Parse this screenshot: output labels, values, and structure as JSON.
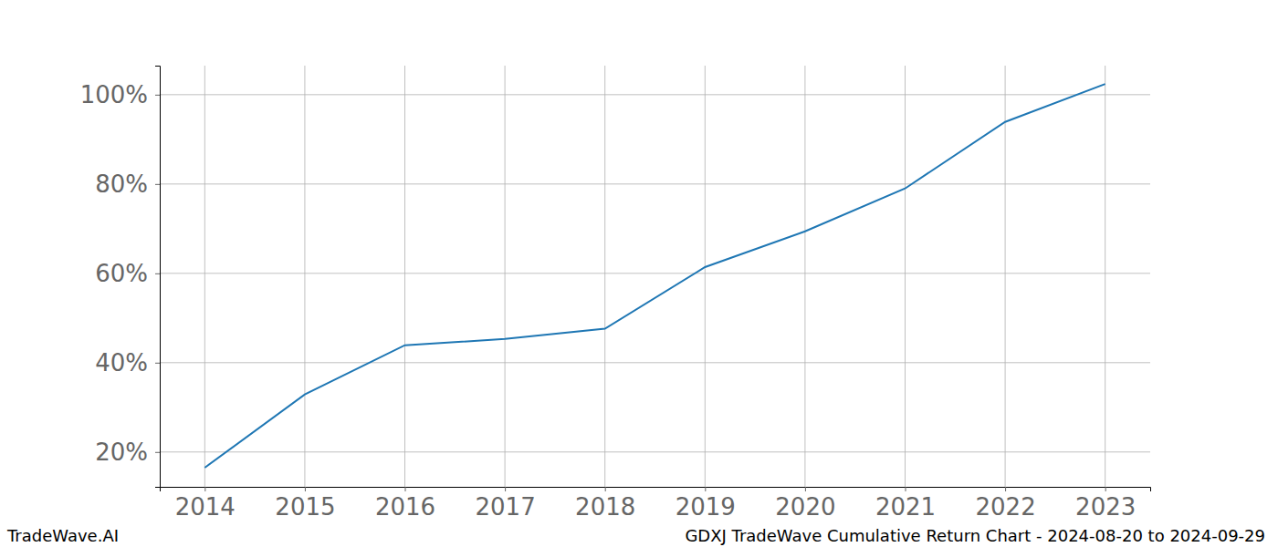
{
  "chart_data": {
    "type": "line",
    "title": "GDXJ TradeWave Cumulative Return Chart - 2024-08-20 to 2024-09-29",
    "source": "TradeWave.AI",
    "x": [
      2014,
      2015,
      2016,
      2017,
      2018,
      2019,
      2020,
      2021,
      2022,
      2023
    ],
    "values": [
      16.5,
      32.9,
      43.9,
      45.3,
      47.6,
      61.4,
      69.4,
      79.0,
      93.9,
      102.4
    ],
    "color": "#1f77b4",
    "xlim": [
      2013.55,
      2023.45
    ],
    "xticks": [
      2014,
      2015,
      2016,
      2017,
      2018,
      2019,
      2020,
      2021,
      2022,
      2023
    ],
    "ylim": [
      12.2,
      106.5
    ],
    "yticks": [
      {
        "value": 20,
        "label": "20%"
      },
      {
        "value": 40,
        "label": "40%"
      },
      {
        "value": 60,
        "label": "60%"
      },
      {
        "value": 80,
        "label": "80%"
      },
      {
        "value": 100,
        "label": "100%"
      }
    ],
    "grid": true
  }
}
